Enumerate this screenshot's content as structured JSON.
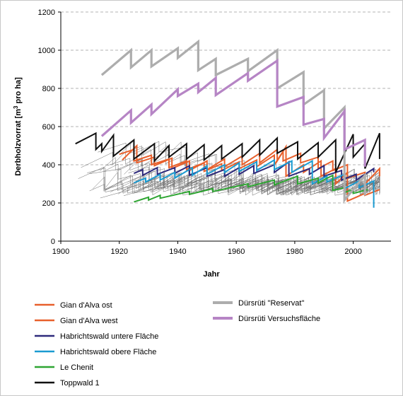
{
  "chart_data": {
    "type": "line",
    "xlabel": "Jahr",
    "ylabel": "Derbholzvorrat [m³ pro ha]",
    "xlim": [
      1900,
      2010
    ],
    "ylim": [
      0,
      1200
    ],
    "x_ticks": [
      1900,
      1920,
      1940,
      1960,
      1980,
      2000
    ],
    "y_ticks": [
      0,
      200,
      400,
      600,
      800,
      1000,
      1200
    ],
    "grid": "horizontal dashed",
    "legend_position": "bottom",
    "series": [
      {
        "name": "Gian d'Alva ost",
        "color": "#e8602c",
        "x": [
          1920,
          1925,
          1925,
          1931,
          1931,
          1937,
          1937,
          1943,
          1943,
          1949,
          1949,
          1955,
          1955,
          1961,
          1961,
          1967,
          1967,
          1973,
          1973,
          1976,
          1976,
          1982,
          1982,
          1988,
          1988,
          1993,
          1993,
          1998,
          1998,
          2004,
          2004,
          2009,
          2009
        ],
        "y": [
          455,
          480,
          420,
          450,
          400,
          430,
          385,
          420,
          375,
          410,
          365,
          405,
          370,
          415,
          380,
          425,
          390,
          450,
          400,
          470,
          420,
          460,
          410,
          440,
          380,
          420,
          370,
          400,
          330,
          360,
          300,
          380,
          340
        ]
      },
      {
        "name": "Gian d'Alva west",
        "color": "#e8602c",
        "x": [
          1921,
          1926,
          1926,
          1932,
          1932,
          1938,
          1938,
          1944,
          1944,
          1950,
          1950,
          1956,
          1956,
          1962,
          1962,
          1968,
          1968,
          1974,
          1974,
          1977,
          1977,
          1983,
          1983,
          1989,
          1989,
          1994,
          1994,
          1998,
          1998,
          2004,
          2004,
          2009
        ],
        "y": [
          425,
          500,
          410,
          440,
          395,
          435,
          380,
          420,
          370,
          420,
          375,
          430,
          390,
          445,
          400,
          460,
          410,
          480,
          420,
          495,
          340,
          400,
          360,
          420,
          340,
          380,
          300,
          360,
          210,
          250,
          240,
          270
        ]
      },
      {
        "name": "Habrichtswald untere Fläche",
        "color": "#2e2a7c",
        "x": [
          1925,
          1928,
          1928,
          1933,
          1933,
          1939,
          1939,
          1944,
          1944,
          1950,
          1950,
          1956,
          1956,
          1961,
          1961,
          1966,
          1966,
          1973,
          1973,
          1978,
          1978,
          1985,
          1985,
          1990,
          1990,
          1996,
          1996,
          2001,
          2001,
          2007,
          2007
        ],
        "y": [
          355,
          375,
          345,
          385,
          350,
          385,
          355,
          395,
          345,
          385,
          340,
          375,
          340,
          385,
          350,
          395,
          355,
          400,
          360,
          415,
          340,
          380,
          350,
          395,
          340,
          370,
          320,
          350,
          320,
          380,
          360
        ]
      },
      {
        "name": "Habrichtswald obere Fläche",
        "color": "#1b9bd1",
        "x": [
          1925,
          1929,
          1929,
          1934,
          1934,
          1939,
          1939,
          1945,
          1945,
          1950,
          1950,
          1956,
          1956,
          1961,
          1961,
          1967,
          1967,
          1973,
          1973,
          1979,
          1979,
          1986,
          1986,
          1991,
          1991,
          1997,
          1997,
          2002,
          2002,
          2007,
          2007
        ],
        "y": [
          305,
          330,
          310,
          350,
          320,
          360,
          330,
          385,
          345,
          395,
          350,
          400,
          360,
          410,
          365,
          415,
          370,
          425,
          375,
          420,
          360,
          420,
          300,
          340,
          310,
          350,
          275,
          315,
          280,
          315,
          175
        ]
      },
      {
        "name": "Le Chenit",
        "color": "#2ea532",
        "x": [
          1925,
          1930,
          1930,
          1934,
          1934,
          1944,
          1944,
          1952,
          1952,
          1964,
          1964,
          1973,
          1973,
          1981,
          1981,
          1988,
          1988,
          1993,
          1993,
          1997,
          1997,
          2000,
          2000,
          2005
        ],
        "y": [
          205,
          230,
          215,
          240,
          225,
          260,
          245,
          275,
          260,
          300,
          285,
          320,
          295,
          340,
          300,
          330,
          305,
          345,
          265,
          280,
          255,
          270,
          250,
          270
        ]
      },
      {
        "name": "Toppwald 1",
        "color": "#111111",
        "x": [
          1905,
          1912,
          1912,
          1914,
          1914,
          1918,
          1918,
          1925,
          1925,
          1932,
          1932,
          1937,
          1937,
          1943,
          1943,
          1949,
          1949,
          1955,
          1955,
          1962,
          1962,
          1968,
          1968,
          1974,
          1974,
          1981,
          1981,
          1988,
          1988,
          1994,
          1994,
          2000,
          2000,
          2004,
          2004,
          2009,
          2009
        ],
        "y": [
          510,
          565,
          480,
          510,
          470,
          555,
          445,
          530,
          430,
          510,
          420,
          500,
          440,
          510,
          430,
          505,
          425,
          500,
          430,
          510,
          440,
          530,
          450,
          540,
          460,
          520,
          430,
          515,
          440,
          530,
          360,
          560,
          440,
          510,
          380,
          565,
          430
        ]
      },
      {
        "name": "Dürsrüti \"Reservat\"",
        "color": "#adadad",
        "x": [
          1914,
          1924,
          1924,
          1931,
          1931,
          1940,
          1940,
          1947,
          1947,
          1953,
          1953,
          1964,
          1964,
          1974,
          1974,
          1983,
          1983,
          1990,
          1990,
          1997,
          1997,
          2004,
          2004
        ],
        "y": [
          870,
          1000,
          910,
          1000,
          915,
          1010,
          960,
          1045,
          895,
          955,
          870,
          955,
          890,
          1000,
          800,
          885,
          715,
          790,
          590,
          700,
          215,
          345,
          240
        ]
      },
      {
        "name": "Dürsrüti Versuchsfläche",
        "color": "#b685c5",
        "x": [
          1914,
          1924,
          1924,
          1931,
          1931,
          1940,
          1940,
          1947,
          1947,
          1953,
          1953,
          1964,
          1964,
          1974,
          1974,
          1983,
          1983,
          1990,
          1990,
          1997,
          1997,
          2004,
          2004
        ],
        "y": [
          550,
          685,
          620,
          715,
          665,
          795,
          760,
          825,
          780,
          855,
          765,
          880,
          840,
          945,
          705,
          755,
          610,
          640,
          540,
          680,
          480,
          530,
          390
        ]
      }
    ]
  }
}
